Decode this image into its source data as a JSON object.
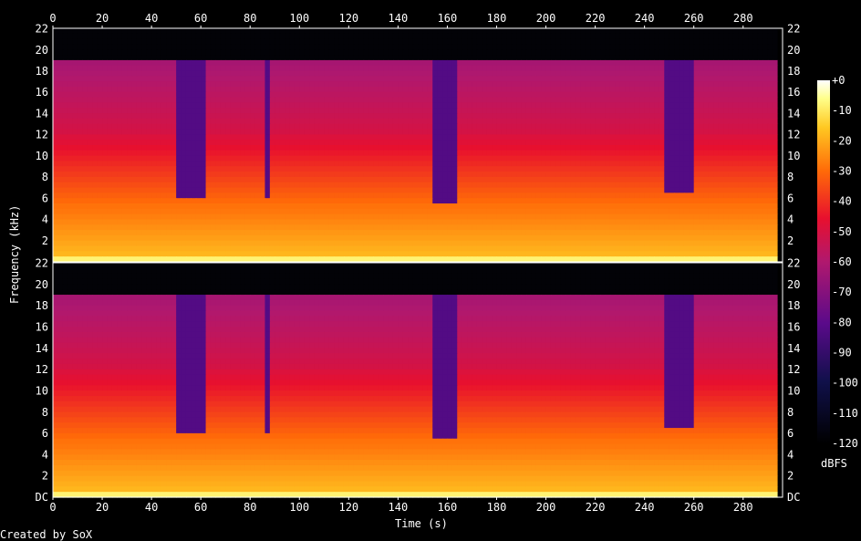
{
  "chart_data": {
    "type": "heatmap",
    "title": "",
    "xlabel": "Time (s)",
    "ylabel": "Frequency (kHz)",
    "xlim": [
      0,
      296
    ],
    "x_ticks": [
      0,
      20,
      40,
      60,
      80,
      100,
      120,
      140,
      160,
      180,
      200,
      220,
      240,
      260,
      280
    ],
    "ylim": [
      0,
      22.05
    ],
    "y_ticks": [
      "DC",
      "2",
      "4",
      "6",
      "8",
      "10",
      "12",
      "14",
      "16",
      "18",
      "20",
      "22"
    ],
    "channels": 2,
    "colorbar": {
      "label": "dBFS",
      "ticks": [
        "+0",
        "-10",
        "-20",
        "-30",
        "-40",
        "-50",
        "-60",
        "-70",
        "-80",
        "-90",
        "-100",
        "-110",
        "-120"
      ],
      "range": [
        -120,
        0
      ]
    },
    "spectral_cutoff_khz": 19,
    "quiet_sections": [
      {
        "start_s": 50,
        "end_s": 61,
        "cutoff_khz": 6
      },
      {
        "start_s": 86,
        "end_s": 88,
        "cutoff_khz": 6
      },
      {
        "start_s": 154,
        "end_s": 164,
        "cutoff_khz": 5.5
      },
      {
        "start_s": 249,
        "end_s": 260,
        "cutoff_khz": 6.5
      }
    ],
    "silence_end_s": 294
  },
  "footer": "Created by SoX",
  "colors": {
    "background": "#000000",
    "text": "#ffffff"
  }
}
